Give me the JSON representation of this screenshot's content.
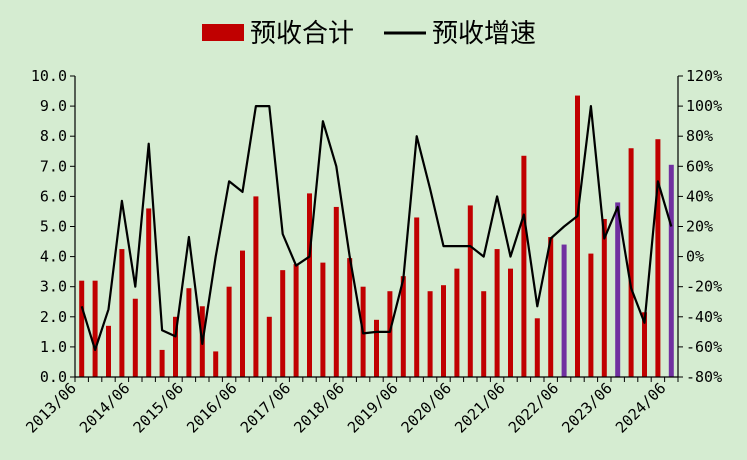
{
  "chart_data": {
    "type": "bar",
    "legend": {
      "bar_label": "预收合计",
      "line_label": "预收增速",
      "position": "top"
    },
    "colors": {
      "background": "#d5ecd1",
      "bar": "#c00000",
      "bar_highlight": "#7030a0",
      "line": "#000000"
    },
    "grid": false,
    "left_axis": {
      "ylim": [
        0,
        10
      ],
      "ticks": [
        "0.0",
        "1.0",
        "2.0",
        "3.0",
        "4.0",
        "5.0",
        "6.0",
        "7.0",
        "8.0",
        "9.0",
        "10.0"
      ]
    },
    "right_axis": {
      "ylim": [
        -80,
        120
      ],
      "ticks": [
        "-80%",
        "-60%",
        "-40%",
        "-20%",
        "0%",
        "20%",
        "40%",
        "60%",
        "80%",
        "100%",
        "120%"
      ]
    },
    "x_tick_labels": [
      "2013/06",
      "2014/06",
      "2015/06",
      "2016/06",
      "2017/06",
      "2018/06",
      "2019/06",
      "2020/06",
      "2021/06",
      "2022/06",
      "2023/06",
      "2024/06"
    ],
    "series": [
      {
        "name": "预收合计",
        "type": "bar",
        "values": [
          3.2,
          3.2,
          1.7,
          4.25,
          2.6,
          5.6,
          0.9,
          2.0,
          2.95,
          2.35,
          0.85,
          3.0,
          4.2,
          6.0,
          2.0,
          3.55,
          3.75,
          6.1,
          3.8,
          5.65,
          3.95,
          3.0,
          1.9,
          2.85,
          3.35,
          5.3,
          2.85,
          3.05,
          3.6,
          5.7,
          2.85,
          4.25,
          3.6,
          7.35,
          1.95,
          4.65,
          4.4,
          9.35,
          4.1,
          5.25,
          5.8,
          7.6,
          2.15,
          7.9,
          7.05
        ],
        "highlighted_indices": [
          36,
          40,
          44
        ]
      },
      {
        "name": "预收增速",
        "type": "line",
        "values": [
          -33,
          -62,
          -35,
          37,
          -20,
          75,
          -49,
          -53,
          13,
          -58,
          0,
          50,
          43,
          100,
          100,
          15,
          -6,
          0,
          90,
          60,
          0,
          -51,
          -50,
          -50,
          -15,
          80,
          45,
          7,
          7,
          7,
          0,
          40,
          0,
          28,
          -33,
          12,
          20,
          27,
          100,
          12,
          33,
          -21,
          -44,
          50,
          20
        ]
      }
    ]
  }
}
